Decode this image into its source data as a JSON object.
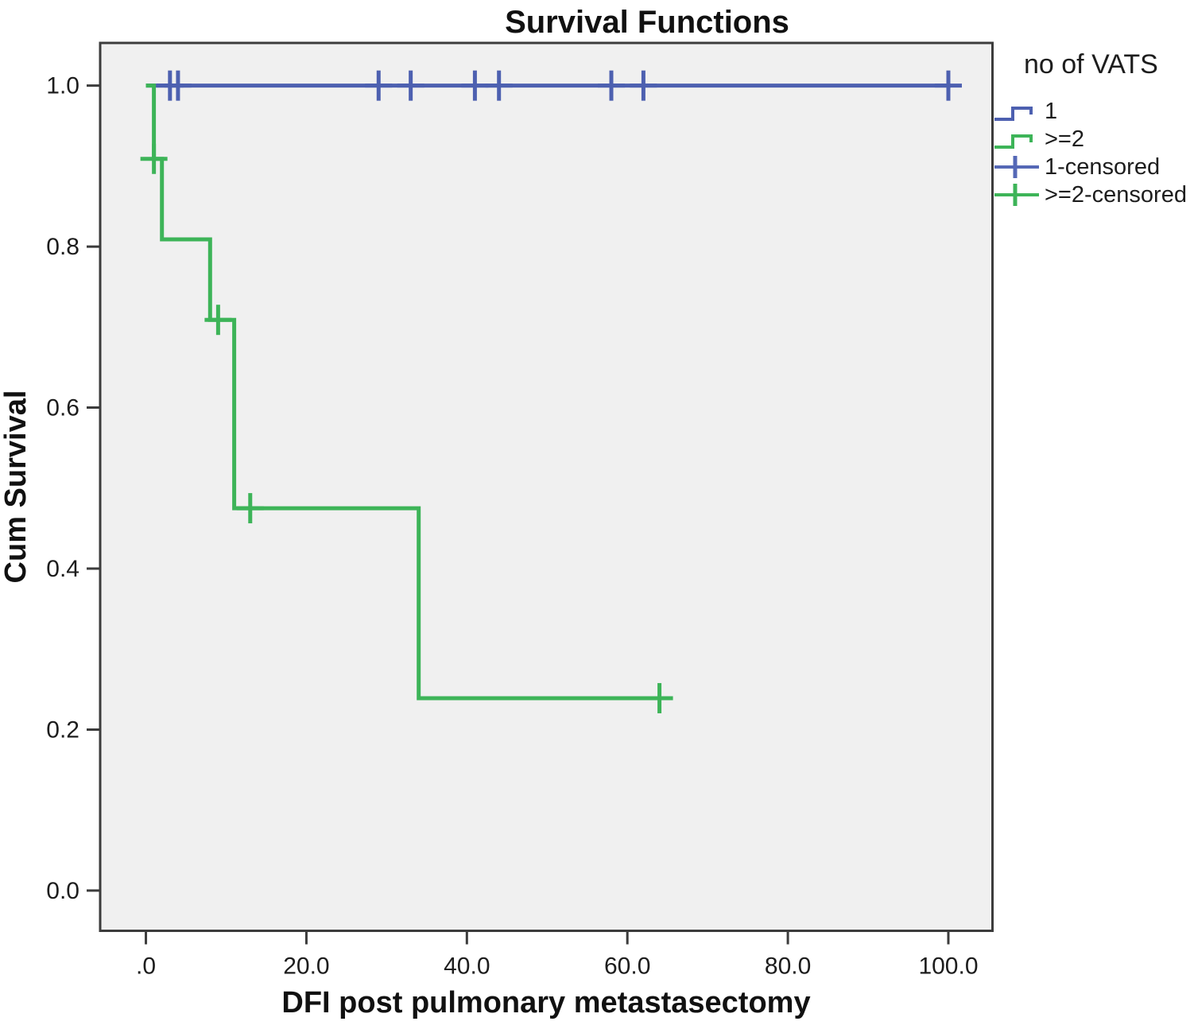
{
  "title": "Survival Functions",
  "axes": {
    "x": {
      "label": "DFI post pulmonary metastasectomy",
      "ticks": [
        ".0",
        "20.0",
        "40.0",
        "60.0",
        "80.0",
        "100.0"
      ],
      "tick_values": [
        0,
        20,
        40,
        60,
        80,
        100
      ]
    },
    "y": {
      "label": "Cum Survival",
      "ticks": [
        "1.0",
        "0.8",
        "0.6",
        "0.4",
        "0.2",
        "0.0"
      ],
      "tick_values": [
        1.0,
        0.8,
        0.6,
        0.4,
        0.2,
        0.0
      ]
    }
  },
  "legend": {
    "title": "no of VATS",
    "items": [
      {
        "label": "1",
        "symbol": "step",
        "color": "#4d60b0"
      },
      {
        "label": ">=2",
        "symbol": "step",
        "color": "#3db458"
      },
      {
        "label": "1-censored",
        "symbol": "censor",
        "color": "#5568b6"
      },
      {
        "label": ">=2-censored",
        "symbol": "censor",
        "color": "#3db458"
      }
    ]
  },
  "colors": {
    "series1_blue": "#4d60b0",
    "series2_green": "#3db458",
    "plot_background": "#f0f0f0",
    "frame": "#3c3c3c",
    "text": "#1d1d1d"
  },
  "chart_data": {
    "type": "line",
    "subtype": "kaplan-meier-step",
    "title": "Survival Functions",
    "xlabel": "DFI post pulmonary metastasectomy",
    "ylabel": "Cum Survival",
    "x_range": [
      -5.7,
      105.5
    ],
    "y_range": [
      -0.05,
      1.053
    ],
    "grid": false,
    "legend_position": "right-top",
    "series": [
      {
        "name": "1",
        "color": "#4d60b0",
        "points": [
          [
            0,
            1.0
          ],
          [
            100.3,
            1.0
          ]
        ],
        "censored": [
          [
            3,
            1.0
          ],
          [
            4,
            1.0
          ],
          [
            29,
            1.0
          ],
          [
            33,
            1.0
          ],
          [
            41,
            1.0
          ],
          [
            44,
            1.0
          ],
          [
            58,
            1.0
          ],
          [
            62,
            1.0
          ],
          [
            100,
            1.0
          ]
        ]
      },
      {
        "name": ">=2",
        "color": "#3db458",
        "points": [
          [
            0,
            1.0
          ],
          [
            1,
            1.0
          ],
          [
            1,
            0.909
          ],
          [
            2,
            0.909
          ],
          [
            2,
            0.809
          ],
          [
            8,
            0.809
          ],
          [
            8,
            0.709
          ],
          [
            11,
            0.709
          ],
          [
            11,
            0.475
          ],
          [
            34,
            0.475
          ],
          [
            34,
            0.239
          ],
          [
            64,
            0.239
          ]
        ],
        "censored": [
          [
            1,
            0.909
          ],
          [
            9,
            0.709
          ],
          [
            13,
            0.475
          ],
          [
            64,
            0.239
          ]
        ]
      }
    ]
  }
}
